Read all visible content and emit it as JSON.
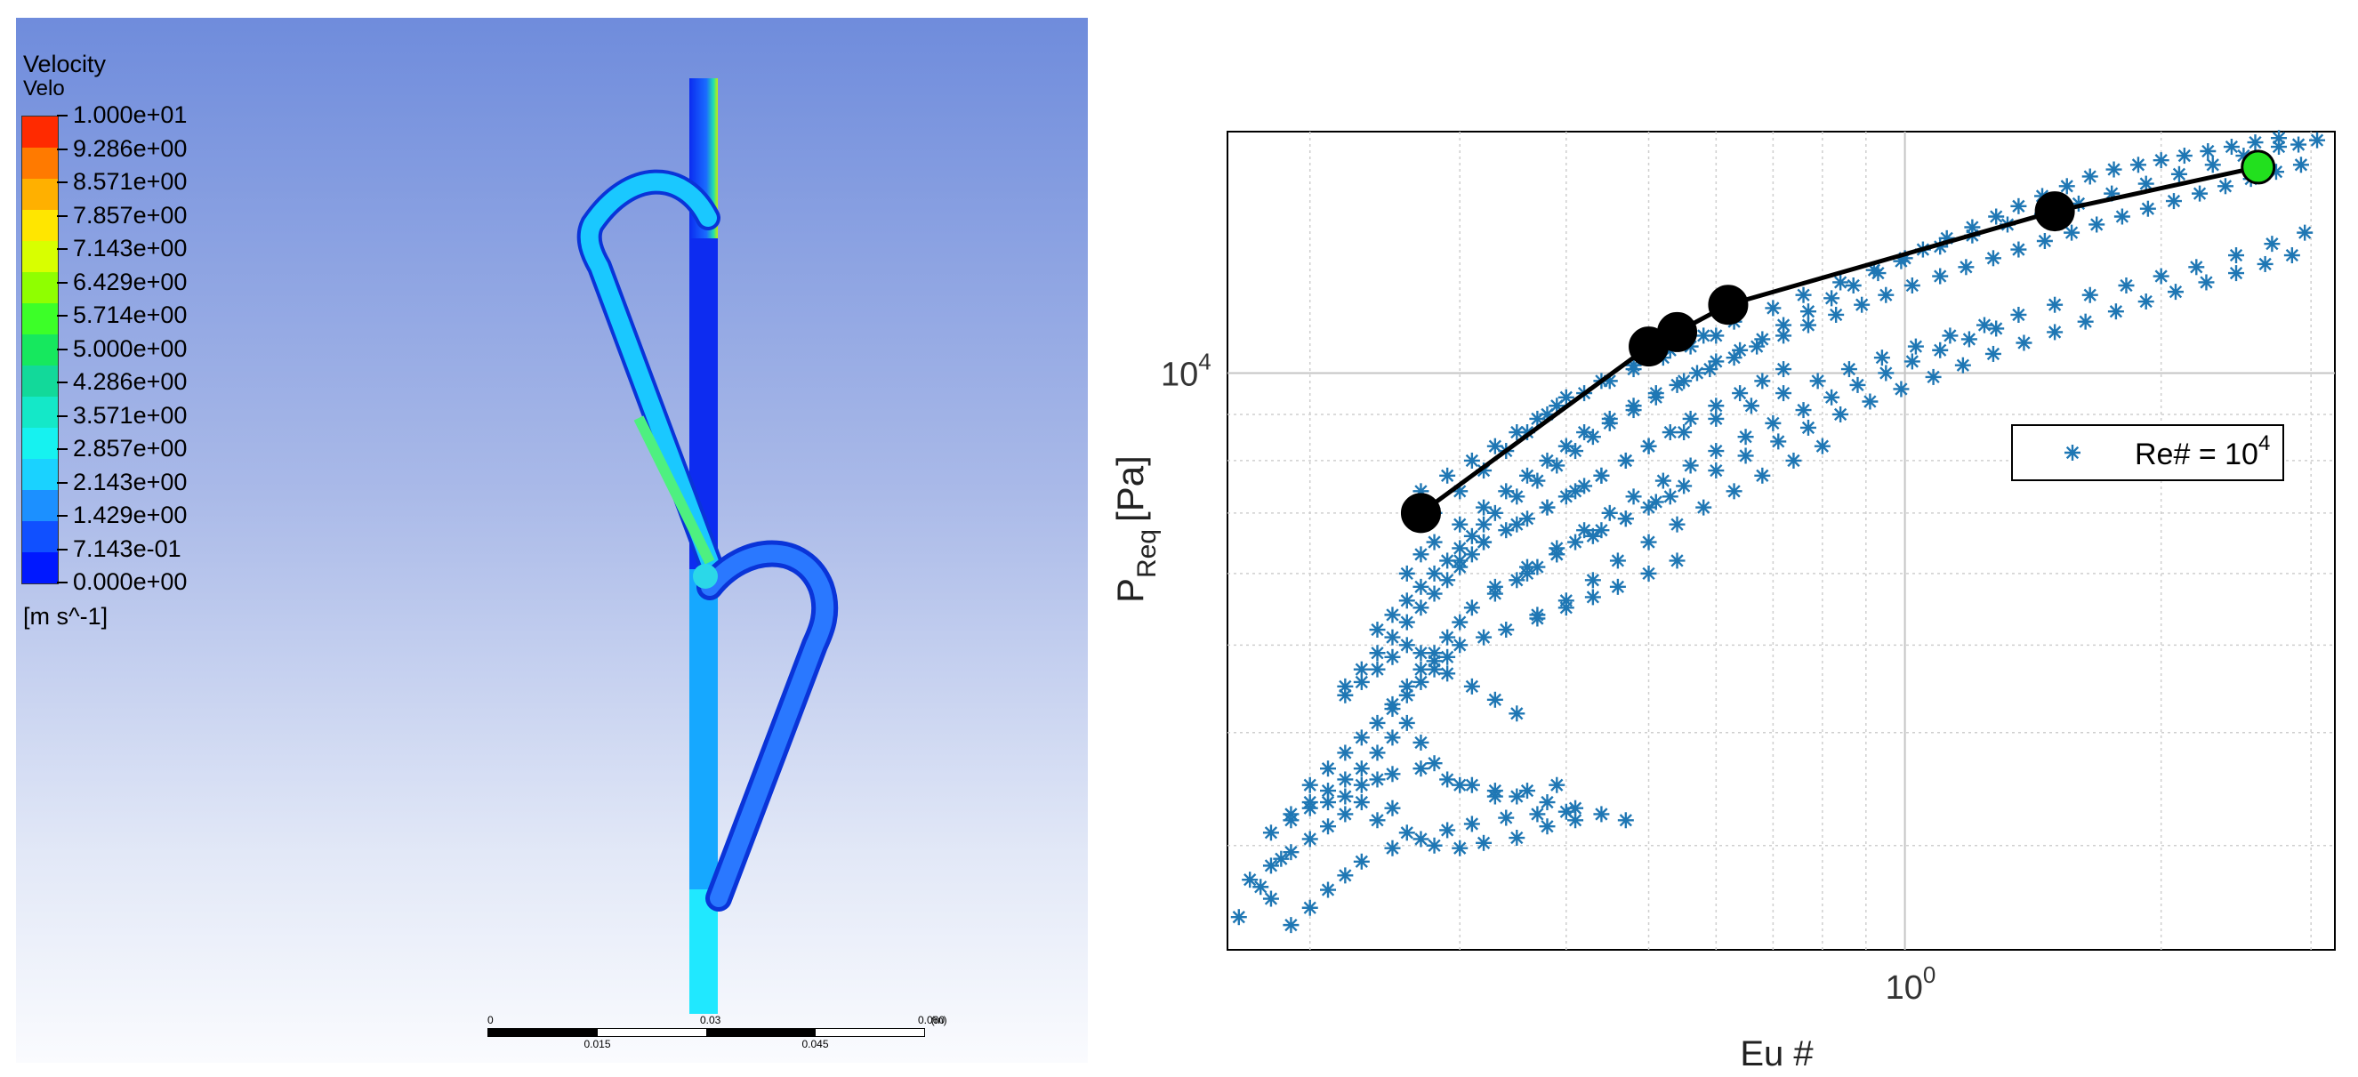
{
  "cfd": {
    "legend_title": "Velocity",
    "legend_variable": "Velo",
    "legend_unit": "[m s^-1]",
    "legend_levels": [
      "1.000e+01",
      "9.286e+00",
      "8.571e+00",
      "7.857e+00",
      "7.143e+00",
      "6.429e+00",
      "5.714e+00",
      "5.000e+00",
      "4.286e+00",
      "3.571e+00",
      "2.857e+00",
      "2.143e+00",
      "1.429e+00",
      "7.143e-01",
      "0.000e+00"
    ],
    "legend_colors": [
      "#ff2a00",
      "#ff7a00",
      "#ffb000",
      "#ffe600",
      "#d8ff00",
      "#8fff00",
      "#3cff28",
      "#16e85e",
      "#12d99a",
      "#14e8c8",
      "#16f2f0",
      "#1ad2ff",
      "#1c90ff",
      "#1050ff",
      "#0018ff"
    ],
    "scale_bar": {
      "labels_top": [
        "0",
        "0.03",
        "0.060",
        "(m)"
      ],
      "labels_bottom": [
        "0.015",
        "0.045"
      ]
    }
  },
  "chart_data": {
    "type": "scatter",
    "xlabel": "Eu #",
    "ylabel": "P",
    "ylabel_sub": "Req",
    "ylabel_unit": "[Pa]",
    "x_scale": "log",
    "y_scale": "log",
    "xlim": [
      0.16,
      3.2
    ],
    "ylim": [
      2300,
      18500
    ],
    "x_tick_label": {
      "base": "10",
      "exp": "0",
      "value": 1.0
    },
    "y_tick_label": {
      "base": "10",
      "exp": "4",
      "value": 10000
    },
    "grid": true,
    "legend": {
      "position": "right",
      "label": "Re# = 10",
      "label_exp": "4"
    },
    "series": [
      {
        "name": "Re# = 10^4",
        "marker": "asterisk",
        "color": "#1f77b4",
        "x": [
          0.165,
          0.175,
          0.18,
          0.185,
          0.19,
          0.2,
          0.21,
          0.22,
          0.23,
          0.25,
          0.27,
          0.29,
          0.31,
          0.34,
          0.37,
          0.4,
          0.17,
          0.18,
          0.19,
          0.2,
          0.21,
          0.22,
          0.23,
          0.24,
          0.25,
          0.26,
          0.28,
          0.3,
          0.32,
          0.35,
          0.38,
          0.41,
          0.19,
          0.2,
          0.21,
          0.22,
          0.23,
          0.24,
          0.25,
          0.26,
          0.27,
          0.28,
          0.3,
          0.33,
          0.36,
          0.39,
          0.2,
          0.21,
          0.22,
          0.23,
          0.24,
          0.25,
          0.26,
          0.27,
          0.28,
          0.29,
          0.3,
          0.32,
          0.34,
          0.37,
          0.4,
          0.43,
          0.46,
          0.5,
          0.54,
          0.22,
          0.23,
          0.24,
          0.25,
          0.26,
          0.27,
          0.28,
          0.29,
          0.3,
          0.31,
          0.32,
          0.34,
          0.36,
          0.38,
          0.4,
          0.42,
          0.44,
          0.47,
          0.5,
          0.53,
          0.56,
          0.6,
          0.64,
          0.68,
          0.72,
          0.24,
          0.25,
          0.26,
          0.27,
          0.28,
          0.29,
          0.3,
          0.31,
          0.32,
          0.33,
          0.35,
          0.37,
          0.39,
          0.41,
          0.43,
          0.45,
          0.48,
          0.51,
          0.54,
          0.57,
          0.6,
          0.64,
          0.68,
          0.72,
          0.77,
          0.82,
          0.87,
          0.93,
          0.99,
          1.05,
          1.12,
          1.2,
          1.28,
          1.36,
          1.45,
          1.55,
          1.65,
          1.76,
          1.88,
          2.0,
          2.13,
          2.27,
          2.42,
          2.58,
          2.75,
          2.9,
          3.05,
          0.26,
          0.27,
          0.28,
          0.3,
          0.32,
          0.34,
          0.36,
          0.38,
          0.4,
          0.42,
          0.45,
          0.48,
          0.51,
          0.55,
          0.59,
          0.63,
          0.67,
          0.72,
          0.77,
          0.83,
          0.89,
          0.95,
          1.02,
          1.1,
          1.18,
          1.27,
          1.36,
          1.46,
          1.57,
          1.68,
          1.8,
          1.93,
          2.07,
          2.22,
          2.38,
          2.55,
          2.73,
          2.92,
          0.3,
          0.32,
          0.35,
          0.38,
          0.41,
          0.44,
          0.47,
          0.5,
          0.55,
          0.6,
          0.66,
          0.72,
          0.79,
          0.86,
          0.94,
          1.03,
          1.13,
          1.24,
          1.36,
          1.5,
          1.65,
          1.82,
          2.0,
          2.2,
          2.45,
          2.7,
          2.95,
          0.33,
          0.36,
          0.39,
          0.42,
          0.45,
          0.48,
          0.52,
          0.56,
          0.6,
          0.65,
          0.7,
          0.76,
          0.82,
          0.88,
          0.95,
          1.02,
          1.1,
          1.19,
          1.28,
          0.37,
          0.4,
          0.43,
          0.46,
          0.5,
          0.54,
          0.58,
          0.63,
          0.68,
          0.74,
          0.8,
          0.27,
          0.29,
          0.31,
          0.33,
          0.35,
          0.37,
          0.39,
          0.42,
          0.45,
          0.48,
          0.52,
          0.56,
          0.6,
          0.28,
          0.3,
          0.32,
          0.34,
          0.36,
          0.38,
          0.4,
          0.44,
          0.48,
          0.53,
          0.58,
          0.63,
          0.7,
          0.76,
          0.84,
          0.92,
          1.0,
          1.1,
          1.2,
          1.32,
          1.45,
          1.6,
          1.75,
          1.92,
          2.1,
          2.3,
          2.5,
          2.75,
          0.36,
          0.39,
          0.43,
          0.47,
          0.51,
          0.55,
          0.6,
          0.65,
          0.71,
          0.77,
          0.84,
          0.91,
          0.99,
          1.08,
          1.17,
          1.27,
          1.38,
          1.5,
          1.63,
          1.77,
          1.92,
          2.08,
          2.26,
          2.45,
          2.65,
          2.85,
          0.25,
          0.26,
          0.27,
          0.28,
          0.29,
          0.3,
          0.31,
          0.33,
          0.35,
          0.37,
          0.39,
          0.41,
          0.44,
          0.47,
          0.5,
          0.53,
          0.18,
          0.19,
          0.2,
          0.21,
          0.22,
          0.23,
          0.24,
          0.25,
          0.27,
          0.29,
          0.31,
          0.33,
          0.35,
          0.38,
          0.41,
          0.44,
          0.47,
          0.22,
          0.23,
          0.24,
          0.25,
          0.26,
          0.27,
          0.28,
          0.29,
          0.31,
          0.33,
          0.35
        ],
        "y": [
          2500,
          2700,
          2620,
          2900,
          2450,
          2560,
          2680,
          2780,
          2880,
          2980,
          3050,
          3120,
          3170,
          3220,
          3250,
          3270,
          2750,
          2850,
          2950,
          3050,
          3150,
          3250,
          3350,
          3200,
          3300,
          3100,
          3000,
          2980,
          3020,
          3060,
          3150,
          3200,
          3250,
          3350,
          3450,
          3550,
          3650,
          3800,
          3950,
          4100,
          3900,
          3700,
          3500,
          3400,
          3450,
          3500,
          3500,
          3650,
          3800,
          3950,
          4100,
          4250,
          4400,
          4550,
          4700,
          4850,
          5000,
          5100,
          5200,
          5350,
          5500,
          5650,
          5800,
          6000,
          6200,
          4500,
          4700,
          4900,
          5100,
          5300,
          5500,
          5700,
          5900,
          6100,
          6300,
          6500,
          6700,
          6900,
          7100,
          7300,
          7500,
          7700,
          8000,
          8300,
          8600,
          8900,
          9200,
          9500,
          9800,
          10100,
          5200,
          5400,
          5600,
          5800,
          6000,
          6200,
          6400,
          6600,
          6800,
          7000,
          7300,
          7600,
          7900,
          8200,
          8500,
          8800,
          9100,
          9400,
          9700,
          10000,
          10300,
          10600,
          10900,
          11300,
          11700,
          12100,
          12500,
          12900,
          13300,
          13700,
          14100,
          14500,
          14900,
          15300,
          15700,
          16100,
          16500,
          16800,
          17000,
          17200,
          17400,
          17600,
          17800,
          18000,
          18200,
          17900,
          18100,
          6000,
          6300,
          6500,
          6800,
          7100,
          7400,
          7700,
          8000,
          8300,
          8600,
          8900,
          9200,
          9500,
          9800,
          10100,
          10400,
          10700,
          11000,
          11300,
          11600,
          11900,
          12200,
          12500,
          12800,
          13100,
          13400,
          13700,
          14000,
          14300,
          14600,
          14900,
          15200,
          15500,
          15800,
          16100,
          16400,
          16700,
          17000,
          6200,
          6500,
          6800,
          7100,
          7400,
          7700,
          8000,
          8300,
          8600,
          8900,
          9200,
          9500,
          9800,
          10100,
          10400,
          10700,
          11000,
          11300,
          11600,
          11900,
          12200,
          12500,
          12800,
          13100,
          13500,
          13900,
          14300,
          5800,
          6100,
          6400,
          6700,
          7000,
          7300,
          7600,
          7900,
          8200,
          8500,
          8800,
          9100,
          9400,
          9700,
          10000,
          10300,
          10600,
          10900,
          11200,
          5400,
          5600,
          5900,
          6200,
          6500,
          6800,
          7100,
          7400,
          7700,
          8000,
          8300,
          7400,
          7700,
          8000,
          8300,
          8600,
          8900,
          9200,
          9500,
          9800,
          10100,
          10400,
          10700,
          11000,
          7000,
          7400,
          7800,
          8200,
          8600,
          9000,
          9400,
          9800,
          10200,
          10600,
          11000,
          11400,
          11800,
          12200,
          12600,
          13000,
          13400,
          13800,
          14200,
          14600,
          15000,
          15400,
          15800,
          16200,
          16600,
          17000,
          17400,
          17800,
          6000,
          6300,
          6600,
          6900,
          7200,
          7500,
          7800,
          8100,
          8400,
          8700,
          9000,
          9300,
          9600,
          9900,
          10200,
          10500,
          10800,
          11100,
          11400,
          11700,
          12000,
          12300,
          12600,
          12900,
          13200,
          13500,
          4300,
          4500,
          4700,
          4900,
          5100,
          5300,
          5500,
          5700,
          5900,
          6100,
          6300,
          6500,
          6700,
          6900,
          7100,
          7300,
          3100,
          3200,
          3300,
          3350,
          3400,
          3500,
          3550,
          3600,
          3650,
          3550,
          3500,
          3450,
          3400,
          3350,
          3300,
          3250,
          3200,
          4400,
          4550,
          4700,
          4850,
          5000,
          4900,
          4800,
          4650,
          4500,
          4350,
          4200
        ]
      },
      {
        "name": "",
        "type": "line",
        "color": "#000000",
        "marker": "circle",
        "marker_color": "#000000",
        "x": [
          0.27,
          0.5,
          0.54,
          0.62,
          1.5,
          2.6
        ],
        "y": [
          7000,
          10700,
          11100,
          11900,
          15100,
          16900
        ],
        "last_marker_color": "#22e01e"
      }
    ]
  }
}
